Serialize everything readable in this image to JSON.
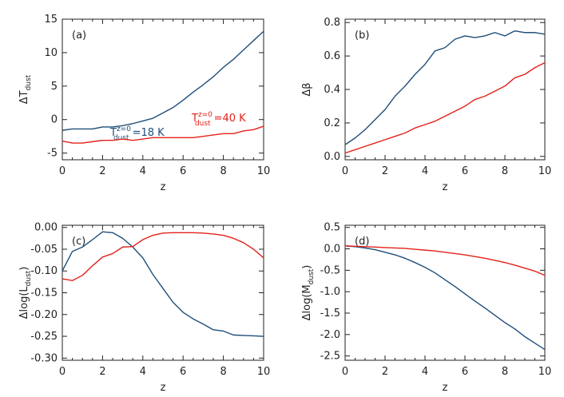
{
  "colors": {
    "blue": "#1f4e79",
    "red": "#e32119",
    "axis": "#222222"
  },
  "chart_data": [
    {
      "type": "line",
      "panel_label": "(a)",
      "xlabel": "z",
      "ylabel": {
        "prefix": "ΔT",
        "sub": "dust"
      },
      "xlim": [
        0,
        10
      ],
      "ylim": [
        -6,
        15
      ],
      "xticks": [
        0,
        2,
        4,
        6,
        8,
        10
      ],
      "yticks": [
        -5,
        0,
        5,
        10,
        15
      ],
      "x": [
        0,
        0.5,
        1,
        1.5,
        2,
        2.5,
        3,
        3.5,
        4,
        4.5,
        5,
        5.5,
        6,
        6.5,
        7,
        7.5,
        8,
        8.5,
        9,
        9.5,
        10
      ],
      "series": [
        {
          "color_key": "blue",
          "values": [
            -1.6,
            -1.4,
            -1.4,
            -1.4,
            -1.1,
            -1.1,
            -0.9,
            -0.6,
            -0.2,
            0.2,
            1.0,
            1.8,
            2.9,
            4.1,
            5.2,
            6.4,
            7.8,
            9.0,
            10.4,
            11.8,
            13.2
          ],
          "annotation": {
            "main": "T",
            "sup": "z=0",
            "sub": "dust",
            "value": "=18 K"
          }
        },
        {
          "color_key": "red",
          "values": [
            -3.2,
            -3.5,
            -3.5,
            -3.3,
            -3.1,
            -3.1,
            -2.9,
            -3.1,
            -2.9,
            -2.7,
            -2.7,
            -2.7,
            -2.7,
            -2.7,
            -2.5,
            -2.3,
            -2.1,
            -2.1,
            -1.7,
            -1.5,
            -1.0
          ],
          "annotation": {
            "main": "T",
            "sup": "z=0",
            "sub": "dust",
            "value": "=40 K"
          }
        }
      ]
    },
    {
      "type": "line",
      "panel_label": "(b)",
      "xlabel": "z",
      "ylabel": {
        "prefix": "Δβ",
        "sub": ""
      },
      "xlim": [
        0,
        10
      ],
      "ylim": [
        -0.02,
        0.82
      ],
      "xticks": [
        0,
        2,
        4,
        6,
        8,
        10
      ],
      "yticks": [
        0.0,
        0.2,
        0.4,
        0.6,
        0.8
      ],
      "ytick_labels": [
        "0.0",
        "0.2",
        "0.4",
        "0.6",
        "0.8"
      ],
      "x": [
        0,
        0.5,
        1,
        1.5,
        2,
        2.5,
        3,
        3.5,
        4,
        4.5,
        5,
        5.5,
        6,
        6.5,
        7,
        7.5,
        8,
        8.5,
        9,
        9.5,
        10
      ],
      "series": [
        {
          "color_key": "blue",
          "values": [
            0.07,
            0.11,
            0.16,
            0.22,
            0.28,
            0.36,
            0.42,
            0.49,
            0.55,
            0.63,
            0.65,
            0.7,
            0.72,
            0.71,
            0.72,
            0.74,
            0.72,
            0.75,
            0.74,
            0.74,
            0.73
          ]
        },
        {
          "color_key": "red",
          "values": [
            0.02,
            0.04,
            0.06,
            0.08,
            0.1,
            0.12,
            0.14,
            0.17,
            0.19,
            0.21,
            0.24,
            0.27,
            0.3,
            0.34,
            0.36,
            0.39,
            0.42,
            0.47,
            0.49,
            0.53,
            0.56
          ]
        }
      ]
    },
    {
      "type": "line",
      "panel_label": "(c)",
      "xlabel": "z",
      "ylabel": {
        "prefix": "Δlog(L",
        "sub": "dust",
        "suffix": ")"
      },
      "xlim": [
        0,
        10
      ],
      "ylim": [
        -0.305,
        0.005
      ],
      "xticks": [
        0,
        2,
        4,
        6,
        8,
        10
      ],
      "yticks": [
        0.0,
        -0.05,
        -0.1,
        -0.15,
        -0.2,
        -0.25,
        -0.3
      ],
      "ytick_labels": [
        "0.00",
        "-0.05",
        "-0.10",
        "-0.15",
        "-0.20",
        "-0.25",
        "-0.30"
      ],
      "x": [
        0,
        0.5,
        1,
        1.5,
        2,
        2.5,
        3,
        3.5,
        4,
        4.5,
        5,
        5.5,
        6,
        6.5,
        7,
        7.5,
        8,
        8.5,
        9,
        9.5,
        10
      ],
      "series": [
        {
          "color_key": "blue",
          "values": [
            -0.1,
            -0.055,
            -0.045,
            -0.028,
            -0.01,
            -0.012,
            -0.025,
            -0.045,
            -0.07,
            -0.108,
            -0.14,
            -0.172,
            -0.195,
            -0.21,
            -0.222,
            -0.235,
            -0.238,
            -0.247,
            -0.248,
            -0.249,
            -0.25
          ]
        },
        {
          "color_key": "red",
          "values": [
            -0.118,
            -0.122,
            -0.11,
            -0.088,
            -0.068,
            -0.06,
            -0.045,
            -0.044,
            -0.028,
            -0.018,
            -0.013,
            -0.012,
            -0.012,
            -0.012,
            -0.013,
            -0.015,
            -0.018,
            -0.025,
            -0.035,
            -0.05,
            -0.07
          ]
        }
      ]
    },
    {
      "type": "line",
      "panel_label": "(d)",
      "xlabel": "z",
      "ylabel": {
        "prefix": "Δlog(M",
        "sub": "dust",
        "suffix": ")"
      },
      "xlim": [
        0,
        10
      ],
      "ylim": [
        -2.6,
        0.55
      ],
      "xticks": [
        0,
        2,
        4,
        6,
        8,
        10
      ],
      "yticks": [
        0.5,
        0.0,
        -0.5,
        -1.0,
        -1.5,
        -2.0,
        -2.5
      ],
      "ytick_labels": [
        "0.5",
        "0.0",
        "-0.5",
        "-1.0",
        "-1.5",
        "-2.0",
        "-2.5"
      ],
      "x": [
        0,
        0.5,
        1,
        1.5,
        2,
        2.5,
        3,
        3.5,
        4,
        4.5,
        5,
        5.5,
        6,
        6.5,
        7,
        7.5,
        8,
        8.5,
        9,
        9.5,
        10
      ],
      "series": [
        {
          "color_key": "blue",
          "values": [
            0.07,
            0.05,
            0.02,
            -0.02,
            -0.08,
            -0.14,
            -0.22,
            -0.32,
            -0.43,
            -0.56,
            -0.72,
            -0.88,
            -1.05,
            -1.22,
            -1.38,
            -1.55,
            -1.72,
            -1.87,
            -2.05,
            -2.2,
            -2.35
          ]
        },
        {
          "color_key": "red",
          "values": [
            0.07,
            0.06,
            0.05,
            0.04,
            0.03,
            0.02,
            0.01,
            -0.01,
            -0.03,
            -0.05,
            -0.08,
            -0.11,
            -0.14,
            -0.18,
            -0.22,
            -0.27,
            -0.32,
            -0.38,
            -0.45,
            -0.52,
            -0.62
          ]
        }
      ]
    }
  ]
}
